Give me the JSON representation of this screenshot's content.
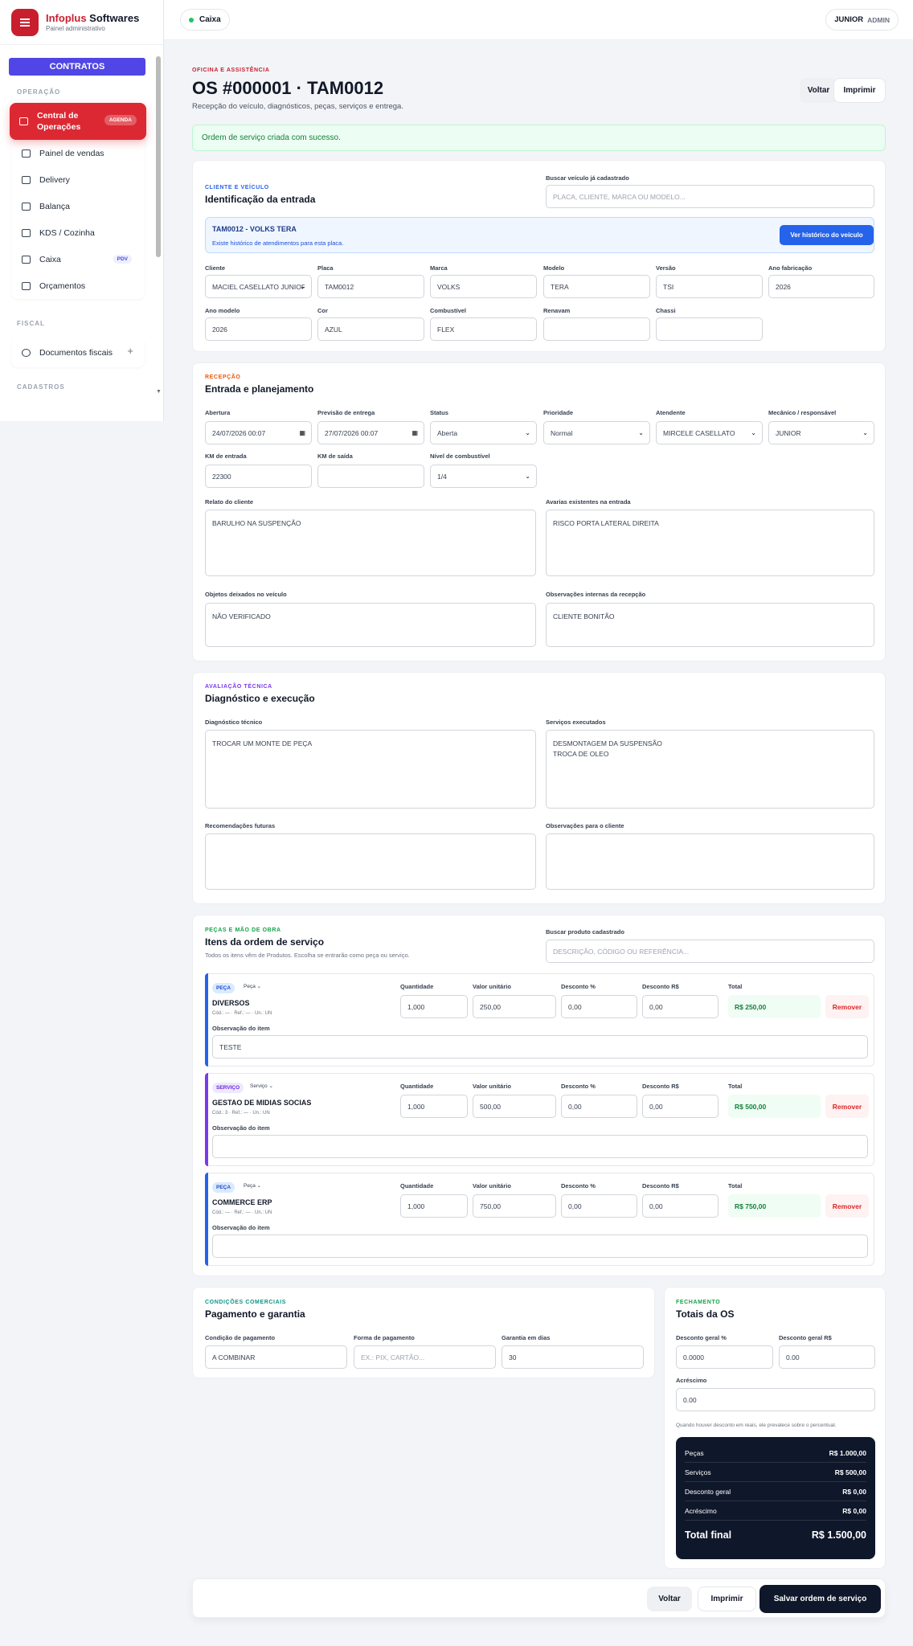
{
  "brand": {
    "name_red": "Infoplus",
    "name_rest": "Softwares",
    "subtitle": "Painel administrativo"
  },
  "sidebar": {
    "contratos": "CONTRATOS",
    "sections": {
      "operacao": "OPERAÇÃO",
      "fiscal": "FISCAL",
      "cadastros": "CADASTROS"
    },
    "items": [
      {
        "label": "Central de Operações",
        "badge": "AGENDA"
      },
      {
        "label": "Painel de vendas"
      },
      {
        "label": "Delivery"
      },
      {
        "label": "Balança"
      },
      {
        "label": "KDS / Cozinha"
      },
      {
        "label": "Caixa",
        "badge": "PDV"
      },
      {
        "label": "Orçamentos"
      }
    ],
    "fiscal_items": [
      {
        "label": "Documentos fiscais",
        "action": "+"
      }
    ]
  },
  "topbar": {
    "caixa": "Caixa",
    "user": "JUNIOR",
    "role": "ADMIN"
  },
  "header": {
    "eyebrow": "OFICINA E ASSISTÊNCIA",
    "title": "OS #000001 · TAM0012",
    "description": "Recepção do veículo, diagnósticos, peças, serviços e entrega.",
    "back": "Voltar",
    "print": "Imprimir"
  },
  "alert": "Ordem de serviço criada com sucesso.",
  "vehicle": {
    "eyebrow": "CLIENTE E VEÍCULO",
    "title": "Identificação da entrada",
    "search_label": "Buscar veículo já cadastrado",
    "search_placeholder": "PLACA, CLIENTE, MARCA OU MODELO...",
    "history_title": "TAM0012 - VOLKS TERA",
    "history_text": "Existe histórico de atendimentos para esta placa.",
    "history_button": "Ver histórico do veículo",
    "labels": {
      "cliente": "Cliente",
      "placa": "Placa",
      "marca": "Marca",
      "modelo": "Modelo",
      "versao": "Versão",
      "ano_fab": "Ano fabricação",
      "ano_mod": "Ano modelo",
      "cor": "Cor",
      "combustivel": "Combustível",
      "renavam": "Renavam",
      "chassi": "Chassi"
    },
    "values": {
      "cliente": "MACIEL CASELLATO JUNIOR",
      "placa": "TAM0012",
      "marca": "VOLKS",
      "modelo": "TERA",
      "versao": "TSI",
      "ano_fab": "2026",
      "ano_mod": "2026",
      "cor": "AZUL",
      "combustivel": "FLEX",
      "renavam": "",
      "chassi": ""
    }
  },
  "reception": {
    "eyebrow": "RECEPÇÃO",
    "title": "Entrada e planejamento",
    "labels": {
      "abertura": "Abertura",
      "previsao": "Previsão de entrega",
      "status": "Status",
      "prioridade": "Prioridade",
      "atendente": "Atendente",
      "mecanico": "Mecânico / responsável",
      "km_entrada": "KM de entrada",
      "km_saida": "KM de saída",
      "combustivel": "Nível de combustível",
      "relato": "Relato do cliente",
      "avarias": "Avarias existentes na entrada",
      "objetos": "Objetos deixados no veículo",
      "obs": "Observações internas da recepção"
    },
    "values": {
      "abertura": "24/07/2026 00:07",
      "previsao": "27/07/2026 00:07",
      "status": "Aberta",
      "prioridade": "Normal",
      "atendente": "MIRCELE CASELLATO",
      "mecanico": "JUNIOR",
      "km_entrada": "22300",
      "km_saida": "",
      "combustivel": "1/4",
      "relato": "BARULHO NA SUSPENÇÃO",
      "avarias": "RISCO PORTA LATERAL DIREITA",
      "objetos": "NÃO VERIFICADO",
      "obs": "CLIENTE BONITÃO"
    }
  },
  "technical": {
    "eyebrow": "AVALIAÇÃO TÉCNICA",
    "title": "Diagnóstico e execução",
    "labels": {
      "diag": "Diagnóstico técnico",
      "servicos": "Serviços executados",
      "recom": "Recomendações futuras",
      "obs_cliente": "Observações para o cliente"
    },
    "values": {
      "diag": "TROCAR UM MONTE DE PEÇA",
      "servicos": "DESMONTAGEM DA SUSPENSÃO\nTROCA DE OLEO",
      "recom": "",
      "obs_cliente": ""
    }
  },
  "items": {
    "eyebrow": "PEÇAS E MÃO DE OBRA",
    "title": "Itens da ordem de serviço",
    "description": "Todos os itens vêm de Produtos. Escolha se entrarão como peça ou serviço.",
    "search_label": "Buscar produto cadastrado",
    "search_placeholder": "DESCRIÇÃO, CÓDIGO OU REFERÊNCIA...",
    "col": {
      "qtd": "Quantidade",
      "unit": "Valor unitário",
      "dpct": "Desconto %",
      "dval": "Desconto R$",
      "total": "Total",
      "obs": "Observação do item",
      "remove": "Remover"
    },
    "list": [
      {
        "tag": "PEÇA",
        "type": "Peça",
        "name": "DIVERSOS",
        "meta": "Cód.: — · Ref.: — · Un.: UN",
        "qtd": "1,000",
        "unit": "250,00",
        "dpct": "0,00",
        "dval": "0,00",
        "total": "R$ 250,00",
        "obs": "TESTE"
      },
      {
        "tag": "SERVIÇO",
        "type": "Serviço",
        "name": "GESTAO DE MIDIAS SOCIAS",
        "meta": "Cód.: 3 · Ref.: — · Un.: UN",
        "qtd": "1,000",
        "unit": "500,00",
        "dpct": "0,00",
        "dval": "0,00",
        "total": "R$ 500,00",
        "obs": ""
      },
      {
        "tag": "PEÇA",
        "type": "Peça",
        "name": "COMMERCE ERP",
        "meta": "Cód.: — · Ref.: — · Un.: UN",
        "qtd": "1,000",
        "unit": "750,00",
        "dpct": "0,00",
        "dval": "0,00",
        "total": "R$ 750,00",
        "obs": ""
      }
    ]
  },
  "commercial": {
    "eyebrow": "CONDIÇÕES COMERCIAIS",
    "title": "Pagamento e garantia",
    "labels": {
      "cond": "Condição de pagamento",
      "forma": "Forma de pagamento",
      "garantia": "Garantia em dias"
    },
    "values": {
      "cond": "A COMBINAR",
      "forma_placeholder": "EX.: PIX, CARTÃO...",
      "garantia": "30"
    }
  },
  "closing": {
    "eyebrow": "FECHAMENTO",
    "title": "Totais da OS",
    "labels": {
      "dpct": "Desconto geral %",
      "dval": "Desconto geral R$",
      "acrescimo": "Acréscimo"
    },
    "values": {
      "dpct": "0.0000",
      "dval": "0.00",
      "acrescimo": "0.00"
    },
    "note": "Quando houver desconto em reais, ele prevalece sobre o percentual.",
    "summary": [
      {
        "label": "Peças",
        "value": "R$ 1.000,00"
      },
      {
        "label": "Serviços",
        "value": "R$ 500,00"
      },
      {
        "label": "Desconto geral",
        "value": "R$ 0,00"
      },
      {
        "label": "Acréscimo",
        "value": "R$ 0,00"
      }
    ],
    "final_label": "Total final",
    "final_value": "R$ 1.500,00"
  },
  "footer": {
    "back": "Voltar",
    "print": "Imprimir",
    "save": "Salvar ordem de serviço"
  },
  "colors": {
    "brand": "#c81e2e",
    "accent": "#5046e5",
    "dark": "#0f172a",
    "success": "#15803d"
  }
}
